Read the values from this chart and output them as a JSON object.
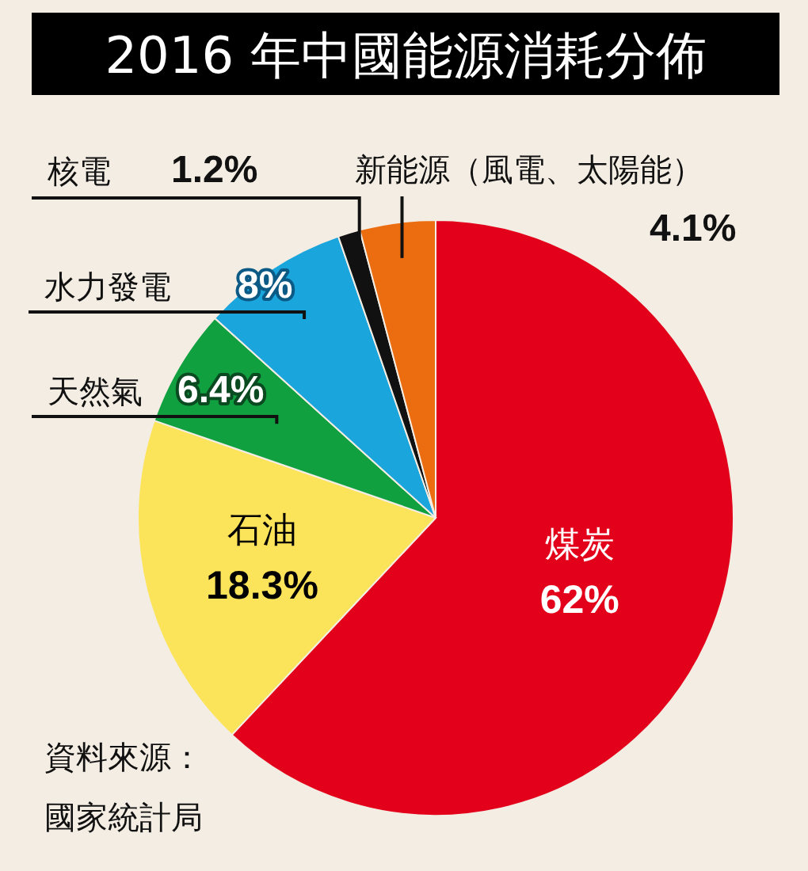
{
  "chart_data": {
    "type": "pie",
    "title": "2016 年中國能源消耗分佈",
    "categories": [
      "煤炭",
      "石油",
      "天然氣",
      "水力發電",
      "核電",
      "新能源（風電、太陽能）"
    ],
    "values": [
      62,
      18.3,
      6.4,
      8,
      1.2,
      4.1
    ],
    "value_labels": [
      "62%",
      "18.3%",
      "6.4%",
      "8%",
      "1.2%",
      "4.1%"
    ],
    "colors": [
      "#e3001b",
      "#fce45a",
      "#10a040",
      "#1aa5dc",
      "#111111",
      "#ec6c10"
    ],
    "annotations": [
      "資料來源：",
      "國家統計局"
    ]
  }
}
